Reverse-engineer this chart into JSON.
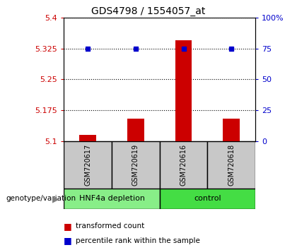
{
  "title": "GDS4798 / 1554057_at",
  "samples": [
    "GSM720617",
    "GSM720619",
    "GSM720616",
    "GSM720618"
  ],
  "bar_values": [
    5.115,
    5.155,
    5.345,
    5.155
  ],
  "percentile_values": [
    5.325,
    5.325,
    5.325,
    5.325
  ],
  "ylim_left": [
    5.1,
    5.4
  ],
  "ylim_right": [
    0,
    100
  ],
  "yticks_left": [
    5.1,
    5.175,
    5.25,
    5.325,
    5.4
  ],
  "yticks_right": [
    0,
    25,
    50,
    75,
    100
  ],
  "ytick_labels_left": [
    "5.1",
    "5.175",
    "5.25",
    "5.325",
    "5.4"
  ],
  "ytick_labels_right": [
    "0",
    "25",
    "50",
    "75",
    "100%"
  ],
  "groups": [
    {
      "label": "HNF4a depletion",
      "indices": [
        0,
        1
      ],
      "color": "#88ee88"
    },
    {
      "label": "control",
      "indices": [
        2,
        3
      ],
      "color": "#44dd44"
    }
  ],
  "bar_color": "#cc0000",
  "dot_color": "#0000cc",
  "bar_width": 0.35,
  "label_box_color": "#c8c8c8",
  "background_color": "#ffffff",
  "genotype_label": "genotype/variation",
  "legend_bar_label": "transformed count",
  "legend_dot_label": "percentile rank within the sample"
}
